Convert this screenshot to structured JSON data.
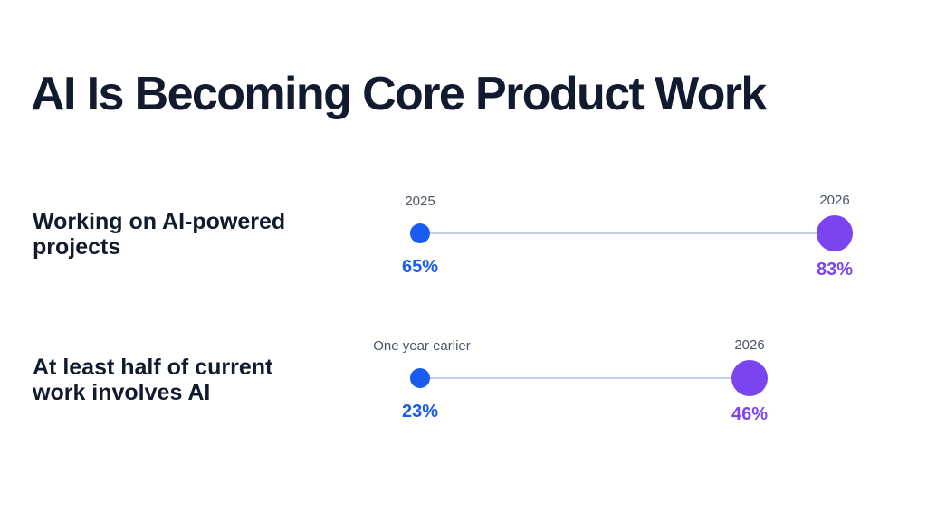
{
  "title": "AI Is Becoming Core Product Work",
  "colors": {
    "title": "#111a2e",
    "start": "#1a5cf0",
    "end": "#7a45ee",
    "line": "#c5d1ea",
    "period_text": "#4b5568"
  },
  "chart_data": {
    "type": "dumbbell",
    "title": "AI Is Becoming Core Product Work",
    "xlabel": "",
    "ylabel": "",
    "unit": "%",
    "xlim": [
      23,
      83
    ],
    "grid": false,
    "legend": "none",
    "rows": [
      {
        "label_lines": [
          "Working on AI-powered",
          "projects"
        ],
        "start_label": "2025",
        "start_value": 65,
        "end_label": "2026",
        "end_value": 83
      },
      {
        "label_lines": [
          "At least half of current",
          "work involves AI"
        ],
        "start_label": "One year earlier",
        "start_value": 23,
        "end_label": "2026",
        "end_value": 46
      }
    ]
  }
}
